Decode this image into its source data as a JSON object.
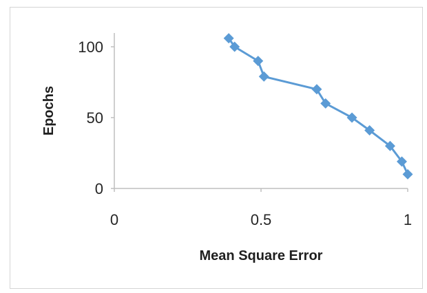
{
  "chart_data": {
    "type": "scatter",
    "xlabel": "Mean Square Error",
    "ylabel": "Epochs",
    "xlim": [
      0,
      1
    ],
    "ylim": [
      0,
      110
    ],
    "x_ticks": [
      "0",
      "0.5",
      "1"
    ],
    "x_tick_values": [
      0,
      0.5,
      1
    ],
    "y_ticks": [
      "0",
      "50",
      "100"
    ],
    "y_tick_values": [
      0,
      50,
      100
    ],
    "grid": false,
    "legend": "none",
    "series": [
      {
        "color": "#5b9bd5",
        "marker": "diamond",
        "points": [
          {
            "x": 0.39,
            "y": 106
          },
          {
            "x": 0.41,
            "y": 100
          },
          {
            "x": 0.49,
            "y": 90
          },
          {
            "x": 0.51,
            "y": 79
          },
          {
            "x": 0.69,
            "y": 70
          },
          {
            "x": 0.72,
            "y": 60
          },
          {
            "x": 0.81,
            "y": 50
          },
          {
            "x": 0.87,
            "y": 41
          },
          {
            "x": 0.94,
            "y": 30
          },
          {
            "x": 0.98,
            "y": 19
          },
          {
            "x": 1.0,
            "y": 10
          }
        ]
      }
    ]
  }
}
